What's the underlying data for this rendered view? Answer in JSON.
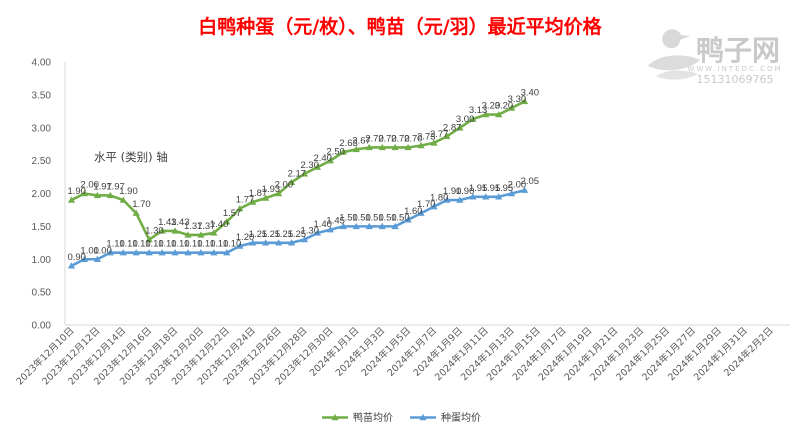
{
  "chart_data": {
    "type": "line",
    "title": "白鸭种蛋（元/枚）、鸭苗（元/羽）最近平均价格",
    "xlabel": "",
    "ylabel": "",
    "ylim": [
      0,
      4
    ],
    "yticks": [
      "0.00",
      "0.50",
      "1.00",
      "1.50",
      "2.00",
      "2.50",
      "3.00",
      "3.50",
      "4.00"
    ],
    "x_range": [
      "2023-12-10",
      "2024-02-02"
    ],
    "x_tick_labels": [
      "2023年12月10日",
      "2023年12月12日",
      "2023年12月14日",
      "2023年12月16日",
      "2023年12月18日",
      "2023年12月20日",
      "2023年12月22日",
      "2023年12月24日",
      "2023年12月26日",
      "2023年12月28日",
      "2023年12月30日",
      "2024年1月1日",
      "2024年1月3日",
      "2024年1月5日",
      "2024年1月7日",
      "2024年1月9日",
      "2024年1月11日",
      "2024年1月13日",
      "2024年1月15日",
      "2024年1月17日",
      "2024年1月19日",
      "2024年1月21日",
      "2024年1月23日",
      "2024年1月25日",
      "2024年1月27日",
      "2024年1月29日",
      "2024年1月31日",
      "2024年2月2日"
    ],
    "grid": false,
    "legend": "bottom",
    "annotation": "水平 (类别) 轴",
    "series": [
      {
        "name": "鸭苗均价",
        "color": "#70ad47",
        "marker": "triangle",
        "values": [
          1.9,
          2.0,
          1.97,
          1.97,
          1.9,
          1.7,
          1.3,
          1.43,
          1.43,
          1.37,
          1.37,
          1.4,
          1.57,
          1.77,
          1.87,
          1.93,
          2.0,
          2.17,
          2.3,
          2.4,
          2.5,
          2.63,
          2.67,
          2.7,
          2.7,
          2.7,
          2.7,
          2.73,
          2.77,
          2.87,
          3.0,
          3.13,
          3.2,
          3.2,
          3.3,
          3.4
        ],
        "labels": [
          "1.90",
          "2.00",
          "1.97",
          "1.97",
          "1.90",
          "1.70",
          "1.30",
          "1.43",
          "1.43",
          "1.37",
          "1.37",
          "1.40",
          "1.57",
          "1.77",
          "1.87",
          "1.93",
          "2.00",
          "2.17",
          "2.30",
          "2.40",
          "2.50",
          "2.63",
          "2.67",
          "2.70",
          "2.70",
          "2.70",
          "2.70",
          "2.73",
          "2.77",
          "2.87",
          "3.00",
          "3.13",
          "3.20",
          "3.20",
          "3.30",
          "3.40"
        ]
      },
      {
        "name": "种蛋均价",
        "color": "#5b9bd5",
        "marker": "triangle",
        "values": [
          0.9,
          1.0,
          1.0,
          1.1,
          1.1,
          1.1,
          1.1,
          1.1,
          1.1,
          1.1,
          1.1,
          1.1,
          1.1,
          1.2,
          1.25,
          1.25,
          1.25,
          1.25,
          1.3,
          1.4,
          1.45,
          1.5,
          1.5,
          1.5,
          1.5,
          1.5,
          1.6,
          1.7,
          1.8,
          1.9,
          1.9,
          1.95,
          1.95,
          1.95,
          2.0,
          2.05
        ],
        "labels": [
          "0.90",
          "1.00",
          "1.00",
          "1.10",
          "1.10",
          "1.10",
          "1.10",
          "1.10",
          "1.10",
          "1.10",
          "1.10",
          "1.10",
          "1.10",
          "1.20",
          "1.25",
          "1.25",
          "1.25",
          "1.25",
          "1.30",
          "1.40",
          "1.45",
          "1.50",
          "1.50",
          "1.50",
          "1.50",
          "1.50",
          "1.60",
          "1.70",
          "1.80",
          "1.90",
          "1.90",
          "1.95",
          "1.95",
          "1.95",
          "2.00",
          "2.05"
        ]
      }
    ]
  },
  "watermark": {
    "name": "鸭子网",
    "url": "WWW.INTEDC.COM",
    "phone": "15131069765",
    "color": "#c9c9c9"
  }
}
